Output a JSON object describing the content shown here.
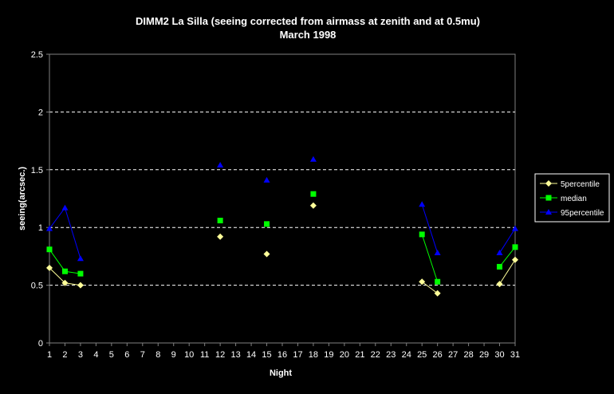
{
  "chart_data": {
    "type": "line",
    "title": "DIMM2 La Silla (seeing corrected from airmass at zenith and at 0.5mu)",
    "subtitle": "March 1998",
    "xlabel": "Night",
    "ylabel": "seeing(arcsec.)",
    "xlim": [
      1,
      31
    ],
    "ylim": [
      0,
      2.5
    ],
    "yticks": [
      "0",
      "0.5",
      "1",
      "1.5",
      "2",
      "2.5"
    ],
    "xticks": [
      "1",
      "2",
      "3",
      "4",
      "5",
      "6",
      "7",
      "8",
      "9",
      "10",
      "11",
      "12",
      "13",
      "14",
      "15",
      "16",
      "17",
      "18",
      "19",
      "20",
      "21",
      "22",
      "23",
      "24",
      "25",
      "26",
      "27",
      "28",
      "29",
      "30",
      "31"
    ],
    "grid": "horizontal dashed",
    "legend_position": "right",
    "series": [
      {
        "name": "5percentile",
        "color": "#FFFF99",
        "marker": "diamond",
        "x": [
          1,
          2,
          3,
          12,
          15,
          18,
          25,
          26,
          30,
          31
        ],
        "y": [
          0.65,
          0.52,
          0.5,
          0.92,
          0.77,
          1.19,
          0.53,
          0.43,
          0.51,
          0.72
        ]
      },
      {
        "name": "median",
        "color": "#00FF00",
        "marker": "square",
        "x": [
          1,
          2,
          3,
          12,
          15,
          18,
          25,
          26,
          30,
          31
        ],
        "y": [
          0.81,
          0.62,
          0.6,
          1.06,
          1.03,
          1.29,
          0.94,
          0.53,
          0.66,
          0.83
        ]
      },
      {
        "name": "95percentile",
        "color": "#0000FF",
        "marker": "triangle",
        "x": [
          1,
          2,
          3,
          12,
          15,
          18,
          25,
          26,
          30,
          31
        ],
        "y": [
          0.99,
          1.17,
          0.73,
          1.54,
          1.41,
          1.59,
          1.2,
          0.78,
          0.78,
          0.99
        ]
      }
    ]
  }
}
